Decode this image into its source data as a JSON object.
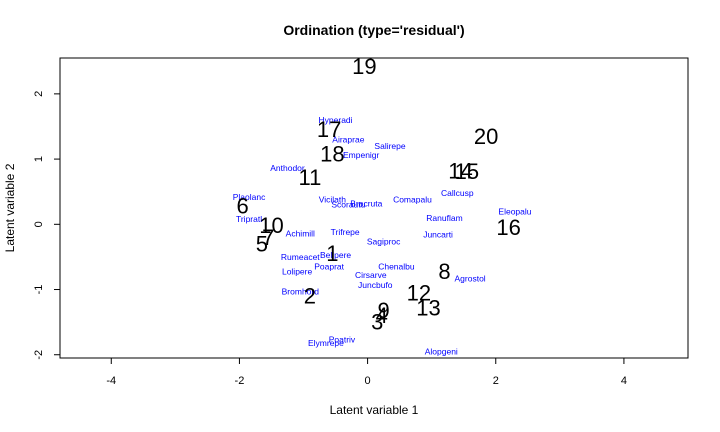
{
  "chart_data": {
    "type": "scatter",
    "title": "Ordination (type='residual')",
    "xlabel": "Latent variable 1",
    "ylabel": "Latent variable 2",
    "xlim": [
      -4.8,
      5.0
    ],
    "ylim": [
      -2.05,
      2.55
    ],
    "xticks": [
      -4,
      -2,
      0,
      2,
      4
    ],
    "yticks": [
      -2,
      -1,
      0,
      1,
      2
    ],
    "sites": [
      {
        "label": "1",
        "x": -0.55,
        "y": -0.45
      },
      {
        "label": "2",
        "x": -0.9,
        "y": -1.1
      },
      {
        "label": "3",
        "x": 0.15,
        "y": -1.5
      },
      {
        "label": "4",
        "x": 0.22,
        "y": -1.4
      },
      {
        "label": "5",
        "x": -1.65,
        "y": -0.3
      },
      {
        "label": "6",
        "x": -1.95,
        "y": 0.28
      },
      {
        "label": "7",
        "x": -1.55,
        "y": -0.2
      },
      {
        "label": "8",
        "x": 1.2,
        "y": -0.72
      },
      {
        "label": "9",
        "x": 0.25,
        "y": -1.32
      },
      {
        "label": "10",
        "x": -1.5,
        "y": -0.02
      },
      {
        "label": "11",
        "x": -0.9,
        "y": 0.72
      },
      {
        "label": "12",
        "x": 0.8,
        "y": -1.05
      },
      {
        "label": "13",
        "x": 0.95,
        "y": -1.28
      },
      {
        "label": "14",
        "x": 1.45,
        "y": 0.82
      },
      {
        "label": "15",
        "x": 1.55,
        "y": 0.81
      },
      {
        "label": "16",
        "x": 2.2,
        "y": -0.05
      },
      {
        "label": "17",
        "x": -0.6,
        "y": 1.45
      },
      {
        "label": "18",
        "x": -0.55,
        "y": 1.08
      },
      {
        "label": "19",
        "x": -0.05,
        "y": 2.42
      },
      {
        "label": "20",
        "x": 1.85,
        "y": 1.35
      }
    ],
    "species": [
      {
        "label": "Hyperadi",
        "x": -0.5,
        "y": 1.6
      },
      {
        "label": "Airaprae",
        "x": -0.3,
        "y": 1.3
      },
      {
        "label": "Salirepe",
        "x": 0.35,
        "y": 1.2
      },
      {
        "label": "Empenigr",
        "x": -0.1,
        "y": 1.06
      },
      {
        "label": "Anthodor",
        "x": -1.25,
        "y": 0.86
      },
      {
        "label": "Callcusp",
        "x": 1.4,
        "y": 0.48
      },
      {
        "label": "Plaolanc",
        "x": -1.85,
        "y": 0.42
      },
      {
        "label": "Vicilath",
        "x": -0.55,
        "y": 0.38
      },
      {
        "label": "Comapalu",
        "x": 0.7,
        "y": 0.38
      },
      {
        "label": "Scorautu",
        "x": -0.3,
        "y": 0.3
      },
      {
        "label": "Bracruta",
        "x": -0.02,
        "y": 0.32
      },
      {
        "label": "Eleopalu",
        "x": 2.3,
        "y": 0.2
      },
      {
        "label": "Tripratl",
        "x": -1.85,
        "y": 0.08
      },
      {
        "label": "Ranuflam",
        "x": 1.2,
        "y": 0.1
      },
      {
        "label": "Achimill",
        "x": -1.05,
        "y": -0.14
      },
      {
        "label": "Trifrepe",
        "x": -0.35,
        "y": -0.12
      },
      {
        "label": "Juncarti",
        "x": 1.1,
        "y": -0.16
      },
      {
        "label": "Sagiproc",
        "x": 0.25,
        "y": -0.26
      },
      {
        "label": "Rumeacet",
        "x": -1.05,
        "y": -0.5
      },
      {
        "label": "Bellpere",
        "x": -0.5,
        "y": -0.47
      },
      {
        "label": "Poaprat",
        "x": -0.6,
        "y": -0.65
      },
      {
        "label": "Chenalbu",
        "x": 0.45,
        "y": -0.65
      },
      {
        "label": "Lolipere",
        "x": -1.1,
        "y": -0.72
      },
      {
        "label": "Cirsarve",
        "x": 0.05,
        "y": -0.78
      },
      {
        "label": "Agrostol",
        "x": 1.6,
        "y": -0.83
      },
      {
        "label": "Juncbufo",
        "x": 0.12,
        "y": -0.93
      },
      {
        "label": "Bromhord",
        "x": -1.05,
        "y": -1.03
      },
      {
        "label": "Poatriv",
        "x": -0.4,
        "y": -1.77
      },
      {
        "label": "Elymrepe",
        "x": -0.65,
        "y": -1.82
      },
      {
        "label": "Alopgeni",
        "x": 1.15,
        "y": -1.95
      }
    ],
    "grid": false,
    "legend": "none",
    "colors": {
      "sites": "#000000",
      "species": "#0000ff"
    }
  }
}
